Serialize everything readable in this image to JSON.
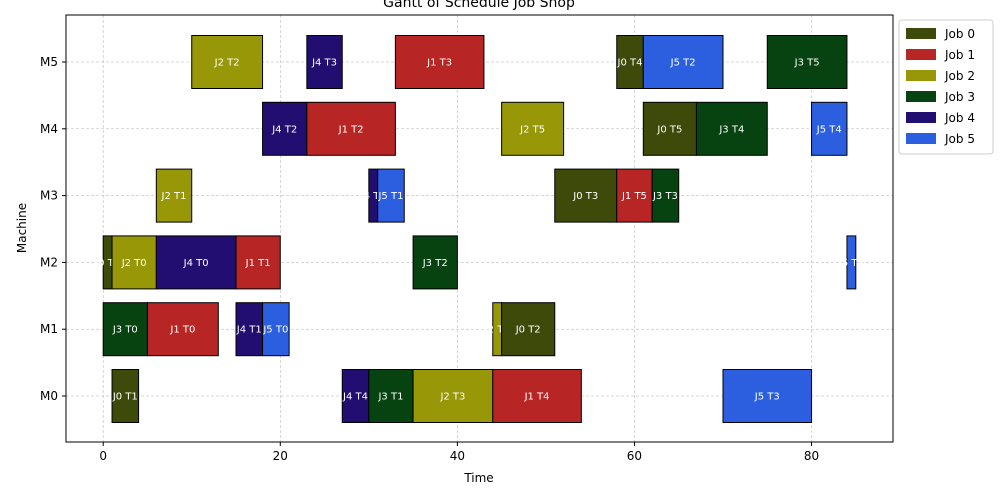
{
  "chart_data": {
    "type": "gantt",
    "title": "Gantt of Schedule Job Shop",
    "xlabel": "Time",
    "ylabel": "Machine",
    "xlim": [
      -4.2,
      89.2
    ],
    "x_ticks": [
      0,
      20,
      40,
      60,
      80
    ],
    "machines": [
      "M0",
      "M1",
      "M2",
      "M3",
      "M4",
      "M5"
    ],
    "grid": true,
    "legend_position": "top-right outside",
    "jobs": [
      {
        "name": "Job 0",
        "color": "#3e4a0a"
      },
      {
        "name": "Job 1",
        "color": "#b72525"
      },
      {
        "name": "Job 2",
        "color": "#979708"
      },
      {
        "name": "Job 3",
        "color": "#064311"
      },
      {
        "name": "Job 4",
        "color": "#210e70"
      },
      {
        "name": "Job 5",
        "color": "#2b5fe0"
      }
    ],
    "tasks": [
      {
        "machine": 0,
        "job": 0,
        "start": 1,
        "end": 4,
        "label": "J0 T1"
      },
      {
        "machine": 0,
        "job": 4,
        "start": 27,
        "end": 30,
        "label": "J4 T4"
      },
      {
        "machine": 0,
        "job": 3,
        "start": 30,
        "end": 35,
        "label": "J3 T1"
      },
      {
        "machine": 0,
        "job": 2,
        "start": 35,
        "end": 44,
        "label": "J2 T3"
      },
      {
        "machine": 0,
        "job": 1,
        "start": 44,
        "end": 54,
        "label": "J1 T4"
      },
      {
        "machine": 0,
        "job": 5,
        "start": 70,
        "end": 80,
        "label": "J5 T3"
      },
      {
        "machine": 1,
        "job": 3,
        "start": 0,
        "end": 5,
        "label": "J3 T0"
      },
      {
        "machine": 1,
        "job": 1,
        "start": 5,
        "end": 13,
        "label": "J1 T0"
      },
      {
        "machine": 1,
        "job": 4,
        "start": 15,
        "end": 18,
        "label": "J4 T1"
      },
      {
        "machine": 1,
        "job": 5,
        "start": 18,
        "end": 21,
        "label": "J5 T0"
      },
      {
        "machine": 1,
        "job": 2,
        "start": 44,
        "end": 45,
        "label": "J2 T4"
      },
      {
        "machine": 1,
        "job": 0,
        "start": 45,
        "end": 51,
        "label": "J0 T2"
      },
      {
        "machine": 2,
        "job": 0,
        "start": 0,
        "end": 1,
        "label": "J0 T0"
      },
      {
        "machine": 2,
        "job": 2,
        "start": 1,
        "end": 6,
        "label": "J2 T0"
      },
      {
        "machine": 2,
        "job": 4,
        "start": 6,
        "end": 15,
        "label": "J4 T0"
      },
      {
        "machine": 2,
        "job": 1,
        "start": 15,
        "end": 20,
        "label": "J1 T1"
      },
      {
        "machine": 2,
        "job": 3,
        "start": 35,
        "end": 40,
        "label": "J3 T2"
      },
      {
        "machine": 2,
        "job": 5,
        "start": 84,
        "end": 85,
        "label": "J5 T5"
      },
      {
        "machine": 3,
        "job": 2,
        "start": 6,
        "end": 10,
        "label": "J2 T1"
      },
      {
        "machine": 3,
        "job": 4,
        "start": 30,
        "end": 31,
        "label": "J4 T5"
      },
      {
        "machine": 3,
        "job": 5,
        "start": 31,
        "end": 34,
        "label": "J5 T1"
      },
      {
        "machine": 3,
        "job": 0,
        "start": 51,
        "end": 58,
        "label": "J0 T3"
      },
      {
        "machine": 3,
        "job": 1,
        "start": 58,
        "end": 62,
        "label": "J1 T5"
      },
      {
        "machine": 3,
        "job": 3,
        "start": 62,
        "end": 65,
        "label": "J3 T3"
      },
      {
        "machine": 4,
        "job": 4,
        "start": 18,
        "end": 23,
        "label": "J4 T2"
      },
      {
        "machine": 4,
        "job": 1,
        "start": 23,
        "end": 33,
        "label": "J1 T2"
      },
      {
        "machine": 4,
        "job": 2,
        "start": 45,
        "end": 52,
        "label": "J2 T5"
      },
      {
        "machine": 4,
        "job": 0,
        "start": 61,
        "end": 67,
        "label": "J0 T5"
      },
      {
        "machine": 4,
        "job": 3,
        "start": 67,
        "end": 75,
        "label": "J3 T4"
      },
      {
        "machine": 4,
        "job": 5,
        "start": 80,
        "end": 84,
        "label": "J5 T4"
      },
      {
        "machine": 5,
        "job": 2,
        "start": 10,
        "end": 18,
        "label": "J2 T2"
      },
      {
        "machine": 5,
        "job": 4,
        "start": 23,
        "end": 27,
        "label": "J4 T3"
      },
      {
        "machine": 5,
        "job": 1,
        "start": 33,
        "end": 43,
        "label": "J1 T3"
      },
      {
        "machine": 5,
        "job": 0,
        "start": 58,
        "end": 61,
        "label": "J0 T4"
      },
      {
        "machine": 5,
        "job": 5,
        "start": 61,
        "end": 70,
        "label": "J5 T2"
      },
      {
        "machine": 5,
        "job": 3,
        "start": 75,
        "end": 84,
        "label": "J3 T5"
      }
    ]
  }
}
